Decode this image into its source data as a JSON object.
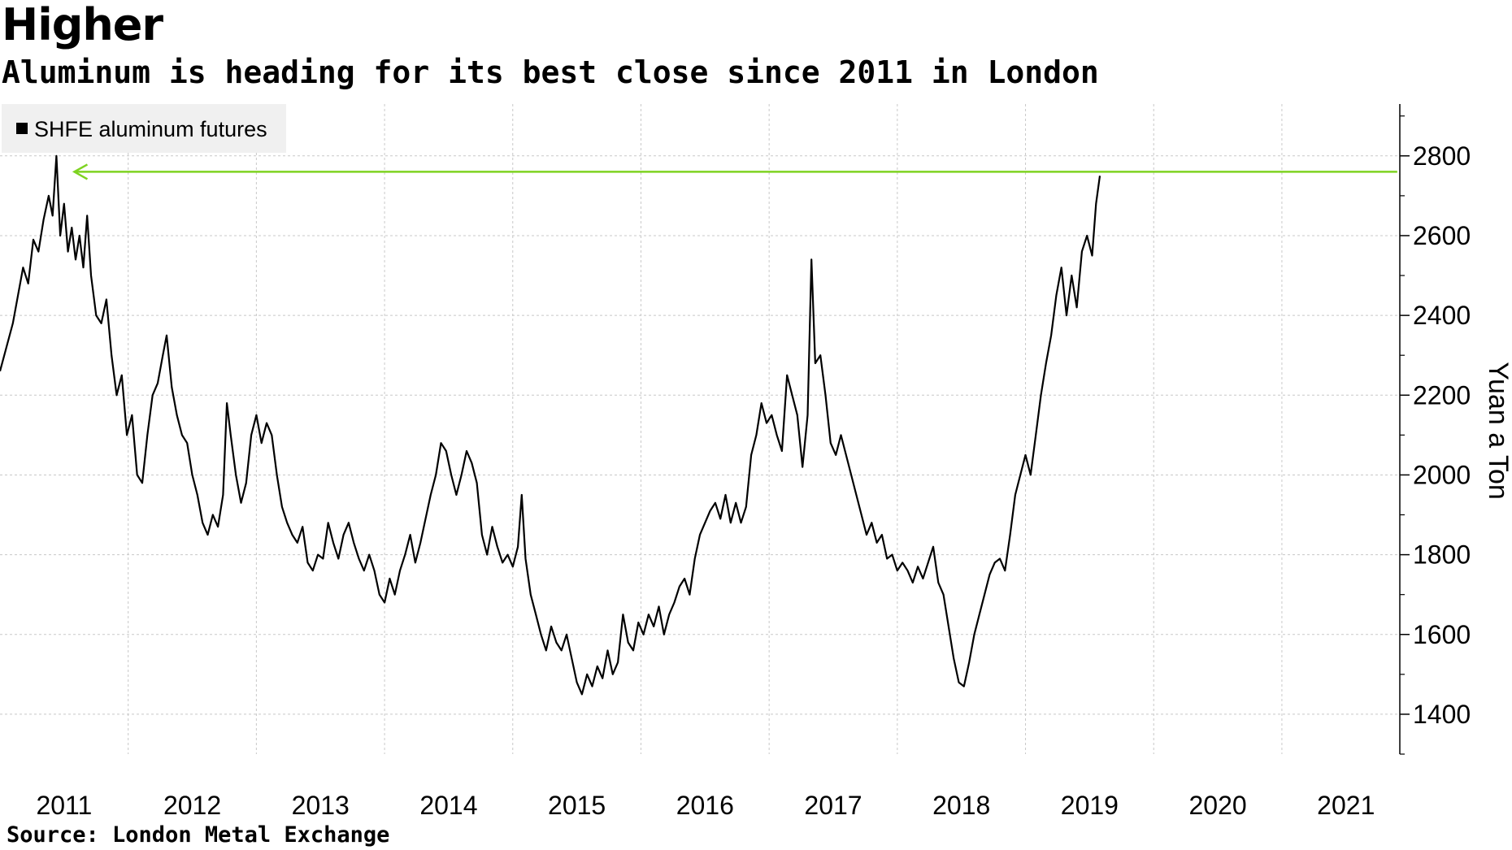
{
  "chart_data": {
    "type": "line",
    "title": "Higher",
    "subtitle": "Aluminum is heading for its best close since 2011 in London",
    "ylabel": "Yuan a Ton",
    "xlabel": "",
    "source": "Source: London Metal Exchange",
    "legend": "SHFE aluminum futures",
    "legend_position": "top-left",
    "ylim": [
      1300,
      2930
    ],
    "xlim": [
      2010.5,
      2021.42
    ],
    "yticks": [
      "1400",
      "1600",
      "1800",
      "2000",
      "2200",
      "2400",
      "2600",
      "2800"
    ],
    "xtick_labels": [
      "2011",
      "2012",
      "2013",
      "2014",
      "2015",
      "2016",
      "2017",
      "2018",
      "2019",
      "2020",
      "2021"
    ],
    "xgrid_years": [
      2011,
      2012,
      2013,
      2014,
      2015,
      2016,
      2017,
      2018,
      2019,
      2020,
      2021
    ],
    "annotation": {
      "type": "arrow",
      "color": "#7ed321",
      "y": 2760,
      "from_year": 2021.4,
      "to_year": 2011.08,
      "label": ""
    },
    "series": [
      {
        "name": "SHFE aluminum futures",
        "color": "#000000",
        "points": [
          [
            2010.5,
            2260
          ],
          [
            2010.55,
            2320
          ],
          [
            2010.6,
            2380
          ],
          [
            2010.64,
            2450
          ],
          [
            2010.68,
            2520
          ],
          [
            2010.72,
            2480
          ],
          [
            2010.76,
            2590
          ],
          [
            2010.8,
            2560
          ],
          [
            2010.84,
            2640
          ],
          [
            2010.88,
            2700
          ],
          [
            2010.91,
            2650
          ],
          [
            2010.94,
            2800
          ],
          [
            2010.97,
            2600
          ],
          [
            2011.0,
            2680
          ],
          [
            2011.03,
            2560
          ],
          [
            2011.06,
            2620
          ],
          [
            2011.09,
            2540
          ],
          [
            2011.12,
            2600
          ],
          [
            2011.15,
            2520
          ],
          [
            2011.18,
            2650
          ],
          [
            2011.21,
            2500
          ],
          [
            2011.25,
            2400
          ],
          [
            2011.29,
            2380
          ],
          [
            2011.33,
            2440
          ],
          [
            2011.37,
            2300
          ],
          [
            2011.41,
            2200
          ],
          [
            2011.45,
            2250
          ],
          [
            2011.49,
            2100
          ],
          [
            2011.53,
            2150
          ],
          [
            2011.57,
            2000
          ],
          [
            2011.61,
            1980
          ],
          [
            2011.65,
            2100
          ],
          [
            2011.69,
            2200
          ],
          [
            2011.73,
            2230
          ],
          [
            2011.77,
            2300
          ],
          [
            2011.8,
            2350
          ],
          [
            2011.84,
            2220
          ],
          [
            2011.88,
            2150
          ],
          [
            2011.92,
            2100
          ],
          [
            2011.96,
            2080
          ],
          [
            2012.0,
            2000
          ],
          [
            2012.04,
            1950
          ],
          [
            2012.08,
            1880
          ],
          [
            2012.12,
            1850
          ],
          [
            2012.16,
            1900
          ],
          [
            2012.2,
            1870
          ],
          [
            2012.24,
            1950
          ],
          [
            2012.27,
            2180
          ],
          [
            2012.3,
            2100
          ],
          [
            2012.34,
            2000
          ],
          [
            2012.38,
            1930
          ],
          [
            2012.42,
            1980
          ],
          [
            2012.46,
            2100
          ],
          [
            2012.5,
            2150
          ],
          [
            2012.54,
            2080
          ],
          [
            2012.58,
            2130
          ],
          [
            2012.62,
            2100
          ],
          [
            2012.66,
            2000
          ],
          [
            2012.7,
            1920
          ],
          [
            2012.74,
            1880
          ],
          [
            2012.78,
            1850
          ],
          [
            2012.82,
            1830
          ],
          [
            2012.86,
            1870
          ],
          [
            2012.9,
            1780
          ],
          [
            2012.94,
            1760
          ],
          [
            2012.98,
            1800
          ],
          [
            2013.02,
            1790
          ],
          [
            2013.06,
            1880
          ],
          [
            2013.1,
            1830
          ],
          [
            2013.14,
            1790
          ],
          [
            2013.18,
            1850
          ],
          [
            2013.22,
            1880
          ],
          [
            2013.26,
            1830
          ],
          [
            2013.3,
            1790
          ],
          [
            2013.34,
            1760
          ],
          [
            2013.38,
            1800
          ],
          [
            2013.42,
            1760
          ],
          [
            2013.46,
            1700
          ],
          [
            2013.5,
            1680
          ],
          [
            2013.54,
            1740
          ],
          [
            2013.58,
            1700
          ],
          [
            2013.62,
            1760
          ],
          [
            2013.66,
            1800
          ],
          [
            2013.7,
            1850
          ],
          [
            2013.74,
            1780
          ],
          [
            2013.78,
            1830
          ],
          [
            2013.82,
            1890
          ],
          [
            2013.86,
            1950
          ],
          [
            2013.9,
            2000
          ],
          [
            2013.94,
            2080
          ],
          [
            2013.98,
            2060
          ],
          [
            2014.02,
            2000
          ],
          [
            2014.06,
            1950
          ],
          [
            2014.1,
            2000
          ],
          [
            2014.14,
            2060
          ],
          [
            2014.18,
            2030
          ],
          [
            2014.22,
            1980
          ],
          [
            2014.26,
            1850
          ],
          [
            2014.3,
            1800
          ],
          [
            2014.34,
            1870
          ],
          [
            2014.38,
            1820
          ],
          [
            2014.42,
            1780
          ],
          [
            2014.46,
            1800
          ],
          [
            2014.5,
            1770
          ],
          [
            2014.54,
            1820
          ],
          [
            2014.57,
            1950
          ],
          [
            2014.6,
            1790
          ],
          [
            2014.64,
            1700
          ],
          [
            2014.68,
            1650
          ],
          [
            2014.72,
            1600
          ],
          [
            2014.76,
            1560
          ],
          [
            2014.8,
            1620
          ],
          [
            2014.84,
            1580
          ],
          [
            2014.88,
            1560
          ],
          [
            2014.92,
            1600
          ],
          [
            2014.96,
            1540
          ],
          [
            2015.0,
            1480
          ],
          [
            2015.04,
            1450
          ],
          [
            2015.08,
            1500
          ],
          [
            2015.12,
            1470
          ],
          [
            2015.16,
            1520
          ],
          [
            2015.2,
            1490
          ],
          [
            2015.24,
            1560
          ],
          [
            2015.28,
            1500
          ],
          [
            2015.32,
            1530
          ],
          [
            2015.36,
            1650
          ],
          [
            2015.4,
            1580
          ],
          [
            2015.44,
            1560
          ],
          [
            2015.48,
            1630
          ],
          [
            2015.52,
            1600
          ],
          [
            2015.56,
            1650
          ],
          [
            2015.6,
            1620
          ],
          [
            2015.64,
            1670
          ],
          [
            2015.68,
            1600
          ],
          [
            2015.72,
            1650
          ],
          [
            2015.76,
            1680
          ],
          [
            2015.8,
            1720
          ],
          [
            2015.84,
            1740
          ],
          [
            2015.88,
            1700
          ],
          [
            2015.92,
            1790
          ],
          [
            2015.96,
            1850
          ],
          [
            2016.0,
            1880
          ],
          [
            2016.04,
            1910
          ],
          [
            2016.08,
            1930
          ],
          [
            2016.12,
            1890
          ],
          [
            2016.16,
            1950
          ],
          [
            2016.2,
            1880
          ],
          [
            2016.24,
            1930
          ],
          [
            2016.28,
            1880
          ],
          [
            2016.32,
            1920
          ],
          [
            2016.36,
            2050
          ],
          [
            2016.4,
            2100
          ],
          [
            2016.44,
            2180
          ],
          [
            2016.48,
            2130
          ],
          [
            2016.52,
            2150
          ],
          [
            2016.56,
            2100
          ],
          [
            2016.6,
            2060
          ],
          [
            2016.64,
            2250
          ],
          [
            2016.68,
            2200
          ],
          [
            2016.72,
            2150
          ],
          [
            2016.76,
            2020
          ],
          [
            2016.8,
            2150
          ],
          [
            2016.83,
            2540
          ],
          [
            2016.86,
            2280
          ],
          [
            2016.9,
            2300
          ],
          [
            2016.94,
            2200
          ],
          [
            2016.98,
            2080
          ],
          [
            2017.02,
            2050
          ],
          [
            2017.06,
            2100
          ],
          [
            2017.1,
            2050
          ],
          [
            2017.14,
            2000
          ],
          [
            2017.18,
            1950
          ],
          [
            2017.22,
            1900
          ],
          [
            2017.26,
            1850
          ],
          [
            2017.3,
            1880
          ],
          [
            2017.34,
            1830
          ],
          [
            2017.38,
            1850
          ],
          [
            2017.42,
            1790
          ],
          [
            2017.46,
            1800
          ],
          [
            2017.5,
            1760
          ],
          [
            2017.54,
            1780
          ],
          [
            2017.58,
            1760
          ],
          [
            2017.62,
            1730
          ],
          [
            2017.66,
            1770
          ],
          [
            2017.7,
            1740
          ],
          [
            2017.74,
            1780
          ],
          [
            2017.78,
            1820
          ],
          [
            2017.82,
            1730
          ],
          [
            2017.86,
            1700
          ],
          [
            2017.9,
            1620
          ],
          [
            2017.94,
            1540
          ],
          [
            2017.98,
            1480
          ],
          [
            2018.02,
            1470
          ],
          [
            2018.06,
            1530
          ],
          [
            2018.1,
            1600
          ],
          [
            2018.14,
            1650
          ],
          [
            2018.18,
            1700
          ],
          [
            2018.22,
            1750
          ],
          [
            2018.26,
            1780
          ],
          [
            2018.3,
            1790
          ],
          [
            2018.34,
            1760
          ],
          [
            2018.38,
            1850
          ],
          [
            2018.42,
            1950
          ],
          [
            2018.46,
            2000
          ],
          [
            2018.5,
            2050
          ],
          [
            2018.54,
            2000
          ],
          [
            2018.58,
            2100
          ],
          [
            2018.62,
            2200
          ],
          [
            2018.66,
            2280
          ],
          [
            2018.7,
            2350
          ],
          [
            2018.74,
            2450
          ],
          [
            2018.78,
            2520
          ],
          [
            2018.82,
            2400
          ],
          [
            2018.86,
            2500
          ],
          [
            2018.9,
            2420
          ],
          [
            2018.94,
            2560
          ],
          [
            2018.98,
            2600
          ],
          [
            2019.02,
            2550
          ],
          [
            2019.05,
            2680
          ],
          [
            2019.08,
            2750
          ]
        ]
      }
    ]
  }
}
